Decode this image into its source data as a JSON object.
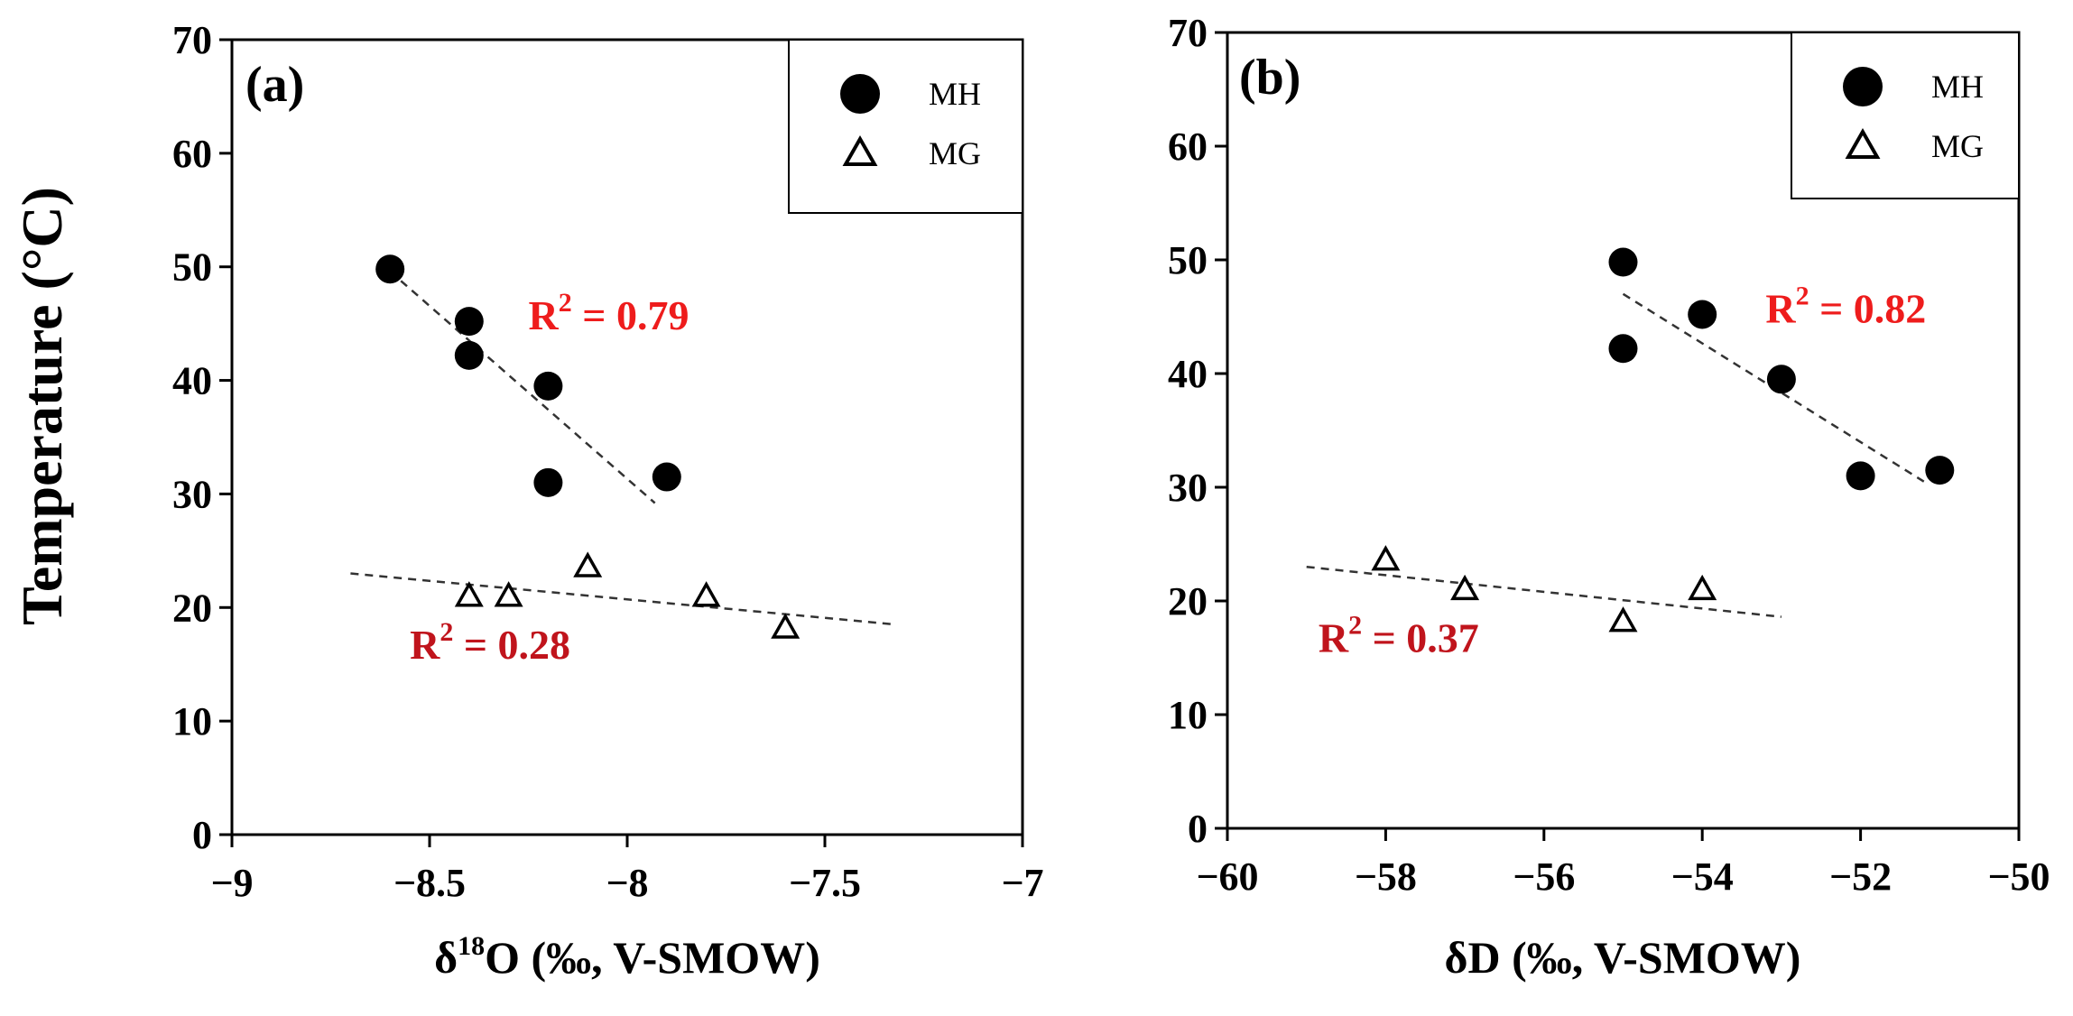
{
  "y_axis_title": "Temperature (°C)",
  "chart_data": [
    {
      "type": "scatter",
      "panel_label": "(a)",
      "xlabel_prefix": "δ",
      "xlabel_sup": "18",
      "xlabel_suffix": "O (‰, V-SMOW)",
      "ylabel": "Temperature (°C)",
      "xlim": [
        -9,
        -7
      ],
      "ylim": [
        0,
        70
      ],
      "xticks": [
        -9,
        -8.5,
        -8,
        -7.5,
        -7
      ],
      "xtick_labels": [
        "-9",
        "-8.5",
        "-8",
        "-7.5",
        "-7"
      ],
      "yticks": [
        0,
        10,
        20,
        30,
        40,
        50,
        60,
        70
      ],
      "ytick_labels": [
        "0",
        "10",
        "20",
        "30",
        "40",
        "50",
        "60",
        "70"
      ],
      "legend_position": "top-right",
      "series": [
        {
          "name": "MH",
          "marker": "filled-circle",
          "x": [
            -8.6,
            -8.4,
            -8.4,
            -8.2,
            -8.2,
            -7.9
          ],
          "y": [
            49.8,
            45.2,
            42.2,
            39.5,
            31.0,
            31.5
          ]
        },
        {
          "name": "MG",
          "marker": "open-triangle",
          "x": [
            -8.4,
            -8.3,
            -8.1,
            -7.8,
            -7.6
          ],
          "y": [
            21.0,
            21.0,
            23.6,
            21.0,
            18.2
          ]
        }
      ],
      "fits": [
        {
          "series": "MH",
          "r2_label": "R",
          "r2_sup": "2",
          "r2_value": " = 0.79",
          "color": "#ee1c1c",
          "line": [
            [
              -8.6,
              49.6
            ],
            [
              -7.93,
              29.2
            ]
          ]
        },
        {
          "series": "MG",
          "r2_label": "R",
          "r2_sup": "2",
          "r2_value": " = 0.28",
          "color": "#c0141c",
          "line": [
            [
              -8.7,
              23.0
            ],
            [
              -7.32,
              18.5
            ]
          ]
        }
      ],
      "annotations": [
        {
          "text": "R² = 0.79",
          "x": -8.25,
          "y": 44.5
        },
        {
          "text": "R² = 0.28",
          "x": -8.55,
          "y": 15.5
        }
      ]
    },
    {
      "type": "scatter",
      "panel_label": "(b)",
      "xlabel_prefix": "δD (‰, V-SMOW)",
      "xlabel_sup": "",
      "xlabel_suffix": "",
      "ylabel": "Temperature (°C)",
      "xlim": [
        -60,
        -50
      ],
      "ylim": [
        0,
        70
      ],
      "xticks": [
        -60,
        -58,
        -56,
        -54,
        -52,
        -50
      ],
      "xtick_labels": [
        "-60",
        "-58",
        "-56",
        "-54",
        "-52",
        "-50"
      ],
      "yticks": [
        0,
        10,
        20,
        30,
        40,
        50,
        60,
        70
      ],
      "ytick_labels": [
        "0",
        "10",
        "20",
        "30",
        "40",
        "50",
        "60",
        "70"
      ],
      "legend_position": "top-right",
      "series": [
        {
          "name": "MH",
          "marker": "filled-circle",
          "x": [
            -55,
            -54,
            -55,
            -53,
            -52,
            -51
          ],
          "y": [
            49.8,
            45.2,
            42.2,
            39.5,
            31.0,
            31.5
          ]
        },
        {
          "name": "MG",
          "marker": "open-triangle",
          "x": [
            -58,
            -57,
            -55,
            -54
          ],
          "y": [
            23.6,
            21.0,
            18.2,
            21.0
          ]
        }
      ],
      "fits": [
        {
          "series": "MH",
          "r2_label": "R",
          "r2_sup": "2",
          "r2_value": " = 0.82",
          "color": "#ee1c1c",
          "line": [
            [
              -55,
              47.0
            ],
            [
              -51.2,
              30.5
            ]
          ]
        },
        {
          "series": "MG",
          "r2_label": "R",
          "r2_sup": "2",
          "r2_value": " = 0.37",
          "color": "#c0141c",
          "line": [
            [
              -59.0,
              23.0
            ],
            [
              -53.0,
              18.6
            ]
          ]
        }
      ],
      "annotations": [
        {
          "text": "R² = 0.82",
          "x": -53.2,
          "y": 44.5
        },
        {
          "text": "R² = 0.37",
          "x": -58.85,
          "y": 15.5
        }
      ]
    }
  ]
}
